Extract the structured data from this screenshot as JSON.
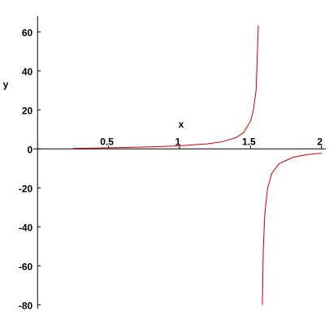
{
  "chart_data": {
    "type": "line",
    "x_label": "x",
    "y_label": "y",
    "x": [
      0.25,
      0.4,
      0.6,
      0.8,
      1.0,
      1.2,
      1.3,
      1.4,
      1.45,
      1.5,
      1.52,
      1.54,
      1.555,
      1.57,
      1.5833,
      1.59,
      1.6,
      1.62,
      1.65,
      1.7,
      1.8,
      1.9,
      2.0
    ],
    "series": [
      {
        "name": "y",
        "color": "#cc0000",
        "values": [
          0.26,
          0.42,
          0.68,
          1.03,
          1.56,
          2.57,
          3.6,
          5.8,
          8.24,
          14.1,
          19.7,
          30.6,
          63.3,
          null,
          -80,
          -52.1,
          -34.2,
          -20.3,
          -12.6,
          -7.7,
          -4.29,
          -2.93,
          -2.19
        ]
      }
    ],
    "xlim": [
      -0.03,
      2.03
    ],
    "ylim": [
      -82,
      68
    ],
    "xticks": [
      0.5,
      1,
      1.5,
      2
    ],
    "yticks": [
      -80,
      -60,
      -40,
      -20,
      0,
      20,
      40,
      60
    ]
  }
}
